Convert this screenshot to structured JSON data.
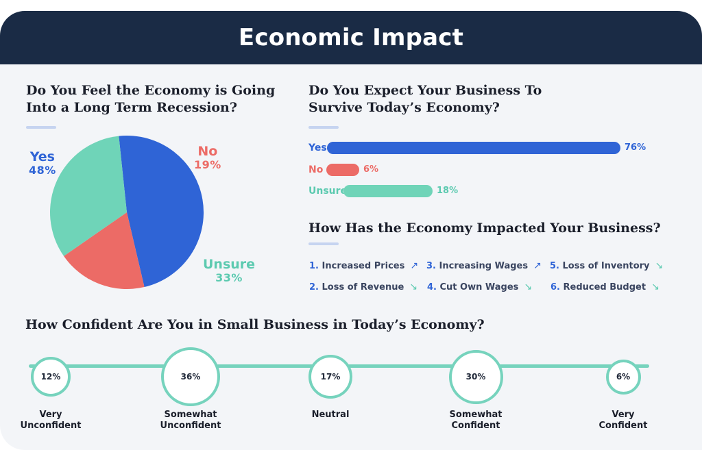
{
  "header": {
    "title": "Economic Impact"
  },
  "questions": {
    "recession": {
      "line1": "Do You Feel the Economy is Going",
      "line2": "Into a Long Term Recession?"
    },
    "survive": {
      "line1": "Do You Expect Your Business To",
      "line2": "Survive Today’s Economy?"
    },
    "impact": {
      "title": "How Has the Economy Impacted Your Business?"
    },
    "confidence": {
      "title": "How Confident Are You in Small Business in Today’s Economy?"
    }
  },
  "impacts": [
    {
      "num": "1.",
      "label": "Increased Prices",
      "direction": "up",
      "arrow": "↗"
    },
    {
      "num": "2.",
      "label": "Loss of Revenue",
      "direction": "down",
      "arrow": "↘"
    },
    {
      "num": "3.",
      "label": "Increasing Wages",
      "direction": "up",
      "arrow": "↗"
    },
    {
      "num": "4.",
      "label": "Cut Own Wages",
      "direction": "down",
      "arrow": "↘"
    },
    {
      "num": "5.",
      "label": "Loss of Inventory",
      "direction": "down",
      "arrow": "↘"
    },
    {
      "num": "6.",
      "label": "Reduced Budget",
      "direction": "down",
      "arrow": "↘"
    }
  ],
  "colors": {
    "header": "#1a2b45",
    "yes": "#2f64d6",
    "no": "#ec6b66",
    "unsure": "#6fd4b8",
    "timeline": "#76d3bd",
    "arrow_up": "#2f64d6",
    "arrow_down": "#5ccab0"
  },
  "chart_data": [
    {
      "type": "pie",
      "title": "Do You Feel the Economy is Going Into a Long Term Recession?",
      "slices": [
        {
          "label": "Yes",
          "value": 48,
          "display": "48%",
          "color": "#2f64d6"
        },
        {
          "label": "No",
          "value": 19,
          "display": "19%",
          "color": "#ec6b66"
        },
        {
          "label": "Unsure",
          "value": 33,
          "display": "33%",
          "color": "#6fd4b8"
        }
      ]
    },
    {
      "type": "bar",
      "orientation": "horizontal",
      "title": "Do You Expect Your Business To Survive Today’s Economy?",
      "categories": [
        "Yes",
        "No",
        "Unsure"
      ],
      "values": [
        76,
        6,
        18
      ],
      "displays": [
        "76%",
        "6%",
        "18%"
      ],
      "colors": [
        "#2f64d6",
        "#ec6b66",
        "#6fd4b8"
      ],
      "xlim": [
        0,
        76
      ]
    },
    {
      "type": "bubble-timeline",
      "title": "How Confident Are You in Small Business in Today’s Economy?",
      "categories": [
        "Very Unconfident",
        "Somewhat Unconfident",
        "Neutral",
        "Somewhat Confident",
        "Very Confident"
      ],
      "label_lines": [
        [
          "Very",
          "Unconfident"
        ],
        [
          "Somewhat",
          "Unconfident"
        ],
        [
          "Neutral"
        ],
        [
          "Somewhat",
          "Confident"
        ],
        [
          "Very",
          "Confident"
        ]
      ],
      "values": [
        12,
        36,
        17,
        30,
        6
      ],
      "displays": [
        "12%",
        "36%",
        "17%",
        "30%",
        "6%"
      ]
    }
  ]
}
